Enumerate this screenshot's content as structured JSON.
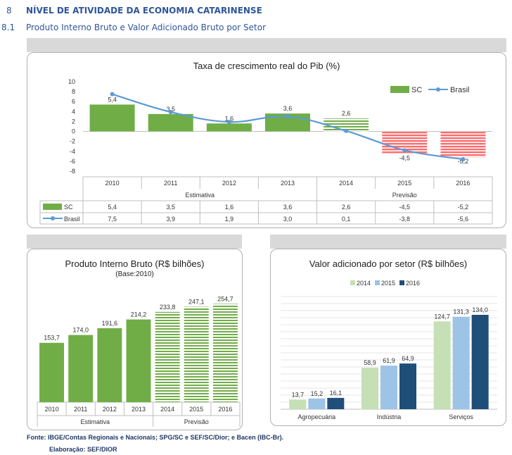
{
  "header": {
    "section_number": "8",
    "section_title": "NÍVEL DE ATIVIDADE DA ECONOMIA CATARINENSE",
    "subsection_number": "8.1",
    "subsection_title": "Produto Interno Bruto e Valor Adicionado Bruto por Setor"
  },
  "colors": {
    "green": "#70ad47",
    "light_blue": "#5b9bd5",
    "red": "#ff6b6b",
    "light_green": "#c5e0b4",
    "mid_blue": "#9dc3e6",
    "dark_blue": "#1f4e79"
  },
  "chart_data": [
    {
      "type": "bar",
      "title": "Taxa de crescimento  real do Pib  (%)",
      "categories": [
        "2010",
        "2011",
        "2012",
        "2013",
        "2014",
        "2015",
        "2016"
      ],
      "series": [
        {
          "name": "SC",
          "type": "bar",
          "values": [
            5.4,
            3.5,
            1.6,
            3.6,
            2.6,
            -4.5,
            -5.2
          ],
          "labels": [
            "5,4",
            "3,5",
            "1,6",
            "3,6",
            "2,6",
            "-4,5",
            "-5,2"
          ]
        },
        {
          "name": "Brasil",
          "type": "line",
          "values": [
            7.5,
            3.9,
            1.9,
            3.0,
            0.1,
            -3.8,
            -5.6
          ],
          "labels": [
            "7,5",
            "3,9",
            "1,9",
            "3,0",
            "0,1",
            "-3,8",
            "-5,6"
          ]
        }
      ],
      "yticks": [
        "10",
        "8",
        "6",
        "4",
        "2",
        "0",
        "-2",
        "-4",
        "-6",
        "-8"
      ],
      "ylim": [
        -8,
        10
      ],
      "groups": [
        {
          "label": "Estimativa",
          "span": [
            0,
            3
          ]
        },
        {
          "label": "Previsão",
          "span": [
            4,
            6
          ]
        }
      ],
      "legend_position": "top-right",
      "data_table": true
    },
    {
      "type": "bar",
      "title": "Produto  Interno Bruto (R$ bilhões)",
      "subtitle": "(Base:2010)",
      "categories": [
        "2010",
        "2011",
        "2012",
        "2013",
        "2014",
        "2015",
        "2016"
      ],
      "values": [
        153.7,
        174.0,
        191.6,
        214.2,
        233.8,
        247.1,
        254.7
      ],
      "labels": [
        "153,7",
        "174,0",
        "191,6",
        "214,2",
        "233,8",
        "247,1",
        "254,7"
      ],
      "ylim": [
        0,
        270
      ],
      "groups": [
        {
          "label": "Estimativa",
          "span": [
            0,
            3
          ]
        },
        {
          "label": "Previsão",
          "span": [
            4,
            6
          ]
        }
      ]
    },
    {
      "type": "bar",
      "title": "Valor adicionado por setor (R$ bilhões)",
      "categories": [
        "Agropecuária",
        "Indústria",
        "Serviços"
      ],
      "series": [
        {
          "name": "2014",
          "values": [
            13.7,
            58.9,
            124.7
          ],
          "labels": [
            "13,7",
            "58,9",
            "124,7"
          ]
        },
        {
          "name": "2015",
          "values": [
            15.2,
            61.9,
            131.3
          ],
          "labels": [
            "15,2",
            "61,9",
            "131,3"
          ]
        },
        {
          "name": "2016",
          "values": [
            16.1,
            64.9,
            134.0
          ],
          "labels": [
            "16,1",
            "64,9",
            "134,0"
          ]
        }
      ],
      "ylim": [
        0,
        160
      ],
      "grid": true,
      "legend_position": "top"
    }
  ],
  "footer": {
    "source": "Fonte: IBGE/Contas Regionais e Nacionais; SPG/SC e SEF/SC/Dior; e Bacen (IBC-Br).",
    "prepared_by": "Elaboração: SEF/DIOR"
  }
}
